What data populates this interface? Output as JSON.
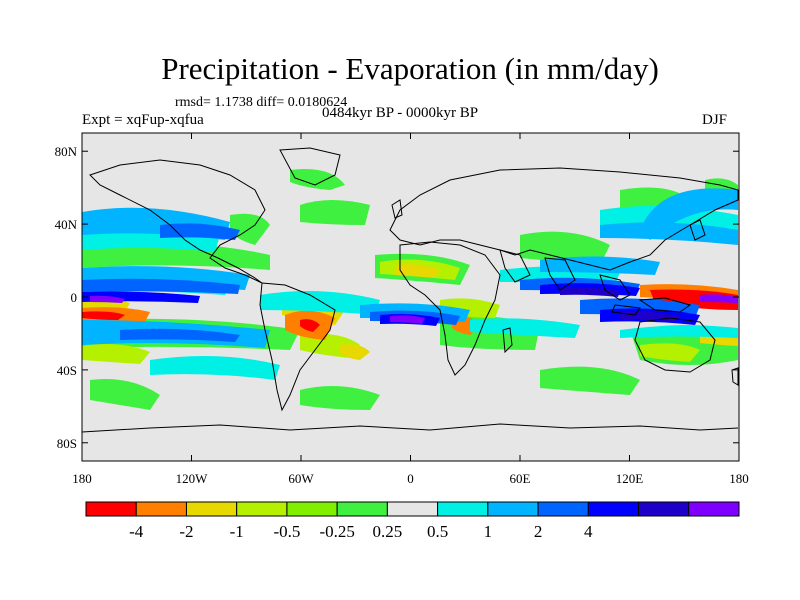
{
  "chart_data": {
    "type": "heatmap",
    "title": "Precipitation - Evaporation (in mm/day)",
    "stats": "rmsd= 1.1738 diff= 0.0180624",
    "experiment": "Expt = xqFup-xqfua",
    "period": "0484kyr BP - 0000kyr BP",
    "season": "DJF",
    "x_ticks": [
      "180",
      "120W",
      "60W",
      "0",
      "60E",
      "120E",
      "180"
    ],
    "x_tick_values": [
      -180,
      -120,
      -60,
      0,
      60,
      120,
      180
    ],
    "y_ticks": [
      "80N",
      "40N",
      "0",
      "40S",
      "80S"
    ],
    "y_tick_values": [
      80,
      40,
      0,
      -40,
      -80
    ],
    "xlim": [
      -180,
      180
    ],
    "ylim": [
      -90,
      90
    ],
    "colorbar": {
      "colors": [
        "#ff0000",
        "#ff8000",
        "#e6d800",
        "#b4f000",
        "#80f000",
        "#40f040",
        "#e6e6e6",
        "#00f0e6",
        "#00b4ff",
        "#0064ff",
        "#0000ff",
        "#1e00c8",
        "#8000ff"
      ],
      "labels": [
        "-4",
        "-2",
        "-1",
        "-0.5",
        "-0.25",
        "0.25",
        "0.5",
        "1",
        "2",
        "4"
      ],
      "levels": [
        -4,
        -2,
        -1,
        -0.5,
        -0.25,
        0.25,
        0.5,
        1,
        2,
        4
      ]
    }
  }
}
